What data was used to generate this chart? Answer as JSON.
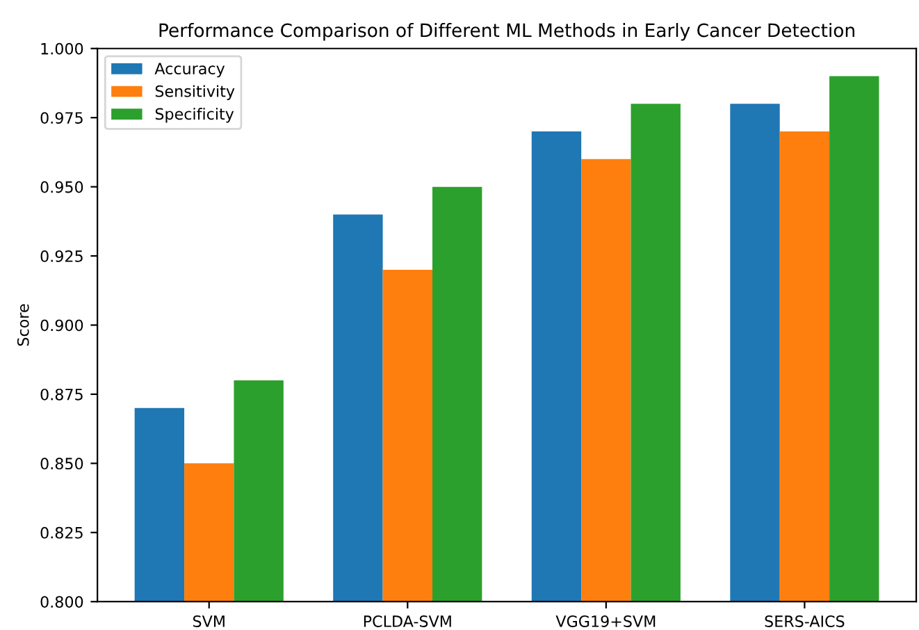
{
  "chart_data": {
    "type": "bar",
    "title": "Performance Comparison of Different ML Methods in Early Cancer Detection",
    "ylabel": "Score",
    "categories": [
      "SVM",
      "PCLDA-SVM",
      "VGG19+SVM",
      "SERS-AICS"
    ],
    "series": [
      {
        "name": "Accuracy",
        "color": "#1f77b4",
        "values": [
          0.87,
          0.94,
          0.97,
          0.98
        ]
      },
      {
        "name": "Sensitivity",
        "color": "#ff7f0e",
        "values": [
          0.85,
          0.92,
          0.96,
          0.97
        ]
      },
      {
        "name": "Specificity",
        "color": "#2ca02c",
        "values": [
          0.88,
          0.95,
          0.98,
          0.99
        ]
      }
    ],
    "ylim": [
      0.8,
      1.0
    ],
    "yticks": [
      {
        "value": 0.8,
        "label": "0.800"
      },
      {
        "value": 0.825,
        "label": "0.825"
      },
      {
        "value": 0.85,
        "label": "0.850"
      },
      {
        "value": 0.875,
        "label": "0.875"
      },
      {
        "value": 0.9,
        "label": "0.900"
      },
      {
        "value": 0.925,
        "label": "0.925"
      },
      {
        "value": 0.95,
        "label": "0.950"
      },
      {
        "value": 0.975,
        "label": "0.975"
      },
      {
        "value": 1.0,
        "label": "1.000"
      }
    ],
    "legend": "top left",
    "grid": false
  }
}
